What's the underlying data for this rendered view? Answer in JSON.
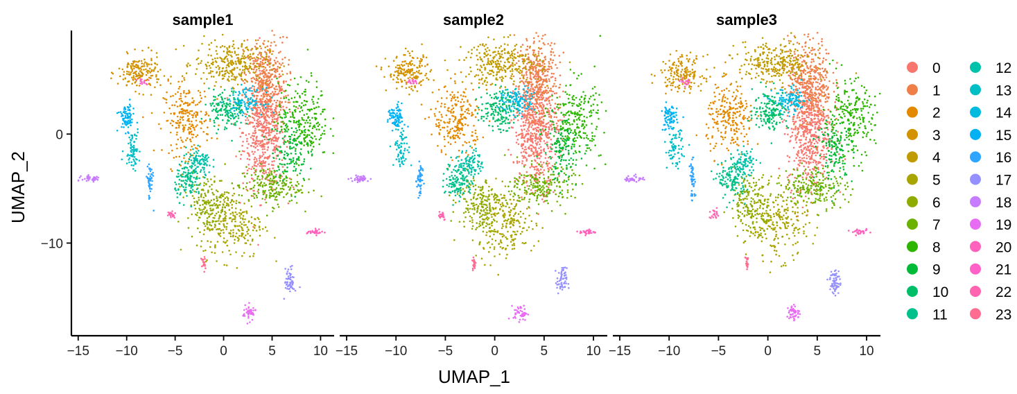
{
  "chart_data": {
    "type": "scatter",
    "xlabel": "UMAP_1",
    "ylabel": "UMAP_2",
    "xlim": [
      -15.7,
      11.4
    ],
    "ylim": [
      -18.5,
      9.5
    ],
    "x_ticks": [
      -15,
      -10,
      -5,
      0,
      5,
      10
    ],
    "x_tick_labels": [
      "−15",
      "−10",
      "−5",
      "0",
      "5",
      "10"
    ],
    "y_ticks": [
      0,
      -10
    ],
    "y_tick_labels": [
      "0",
      "−10"
    ],
    "grid": false,
    "legend_position": "right",
    "facets": [
      {
        "title": "sample1"
      },
      {
        "title": "sample2"
      },
      {
        "title": "sample3"
      }
    ],
    "legend": {
      "labels": [
        "0",
        "1",
        "2",
        "3",
        "4",
        "5",
        "6",
        "7",
        "8",
        "9",
        "10",
        "11",
        "12",
        "13",
        "14",
        "15",
        "16",
        "17",
        "18",
        "19",
        "20",
        "21",
        "22",
        "23"
      ],
      "colors": [
        "#F8766D",
        "#EF7F49",
        "#E38900",
        "#D39200",
        "#C09B00",
        "#A8A400",
        "#8DAB00",
        "#6BB100",
        "#2CB600",
        "#00BA38",
        "#00BE67",
        "#00C08B",
        "#00C1AA",
        "#00BEC6",
        "#00BAE0",
        "#00B2F3",
        "#2FA5FF",
        "#9590FF",
        "#C77CFF",
        "#E76BF3",
        "#FF62BC",
        "#FF61C9",
        "#FF64B0",
        "#FF6C91"
      ]
    },
    "clusters": [
      {
        "id": "0",
        "cx": 4.2,
        "cy": 0.3,
        "sx": 1.1,
        "sy": 2.6,
        "n": 560
      },
      {
        "id": "1",
        "cx": 4.3,
        "cy": 4.8,
        "sx": 1.1,
        "sy": 2.0,
        "n": 380
      },
      {
        "id": "2",
        "cx": -3.8,
        "cy": 1.3,
        "sx": 1.2,
        "sy": 1.6,
        "n": 230
      },
      {
        "id": "3",
        "cx": -8.7,
        "cy": 5.6,
        "sx": 1.1,
        "sy": 0.8,
        "n": 170
      },
      {
        "id": "4",
        "cx": 0.8,
        "cy": 6.5,
        "sx": 1.9,
        "sy": 1.0,
        "n": 280
      },
      {
        "id": "5",
        "cx": 0.9,
        "cy": -8.2,
        "sx": 1.6,
        "sy": 1.6,
        "n": 240
      },
      {
        "id": "6",
        "cx": -1.6,
        "cy": -6.3,
        "sx": 1.1,
        "sy": 1.3,
        "n": 170
      },
      {
        "id": "7",
        "cx": 4.8,
        "cy": -4.8,
        "sx": 1.6,
        "sy": 0.9,
        "n": 200
      },
      {
        "id": "8",
        "cx": 8.2,
        "cy": 1.3,
        "sx": 1.3,
        "sy": 1.8,
        "n": 240
      },
      {
        "id": "9",
        "cx": 6.8,
        "cy": -1.5,
        "sx": 0.9,
        "sy": 1.4,
        "n": 120
      },
      {
        "id": "10",
        "cx": 0.3,
        "cy": 2.2,
        "sx": 0.9,
        "sy": 0.9,
        "n": 150
      },
      {
        "id": "11",
        "cx": -3.6,
        "cy": -4.2,
        "sx": 0.7,
        "sy": 0.9,
        "n": 130
      },
      {
        "id": "12",
        "cx": -2.4,
        "cy": -2.6,
        "sx": 0.6,
        "sy": 0.6,
        "n": 80
      },
      {
        "id": "13",
        "cx": -9.4,
        "cy": -1.3,
        "sx": 0.4,
        "sy": 0.9,
        "n": 70
      },
      {
        "id": "14",
        "cx": 2.3,
        "cy": 3.0,
        "sx": 0.9,
        "sy": 0.6,
        "n": 110
      },
      {
        "id": "15",
        "cx": -10.0,
        "cy": 1.5,
        "sx": 0.4,
        "sy": 0.6,
        "n": 80
      },
      {
        "id": "16",
        "cx": -7.6,
        "cy": -4.3,
        "sx": 0.15,
        "sy": 0.9,
        "n": 50
      },
      {
        "id": "17",
        "cx": 6.8,
        "cy": -13.5,
        "sx": 0.25,
        "sy": 0.6,
        "n": 60
      },
      {
        "id": "18",
        "cx": -13.6,
        "cy": -4.1,
        "sx": 0.5,
        "sy": 0.15,
        "n": 40
      },
      {
        "id": "19",
        "cx": 2.6,
        "cy": -16.4,
        "sx": 0.35,
        "sy": 0.35,
        "n": 45
      },
      {
        "id": "20",
        "cx": 9.4,
        "cy": -9.0,
        "sx": 0.4,
        "sy": 0.12,
        "n": 30
      },
      {
        "id": "21",
        "cx": -8.3,
        "cy": 4.8,
        "sx": 0.3,
        "sy": 0.15,
        "n": 15
      },
      {
        "id": "22",
        "cx": -5.4,
        "cy": -7.4,
        "sx": 0.25,
        "sy": 0.25,
        "n": 20
      },
      {
        "id": "23",
        "cx": -2.1,
        "cy": -11.9,
        "sx": 0.1,
        "sy": 0.35,
        "n": 20
      }
    ]
  }
}
